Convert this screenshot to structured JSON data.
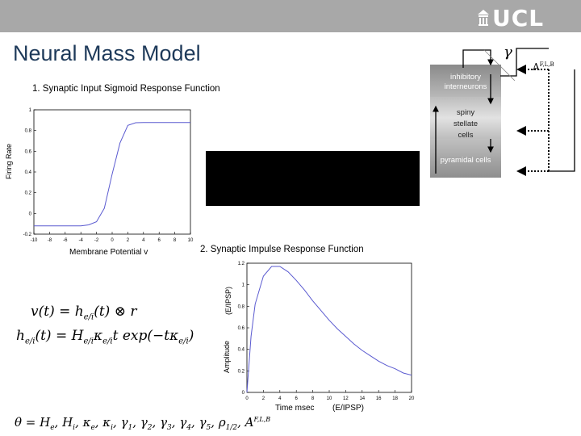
{
  "header": {
    "logo_text": "UCL",
    "title": "Neural Mass Model"
  },
  "section1": {
    "label": "1. Synaptic Input Sigmoid Response Function",
    "ylabel": "Firing Rate",
    "xlabel": "Membrane Potential v"
  },
  "section2": {
    "label": "2. Synaptic Impulse Response Function",
    "ylabel_a": "(E/IPSP)",
    "ylabel_b": "Amplitude",
    "xlabel_a": "Time msec",
    "xlabel_b": "(E/IPSP)"
  },
  "diagram": {
    "inhibitory": [
      "inhibitory",
      "interneurons"
    ],
    "spiny": [
      "spiny",
      "stellate",
      "cells"
    ],
    "pyramidal": "pyramidal cells",
    "ext_input": "A",
    "ext_input_sup": "F,L,B",
    "gamma": "γ"
  },
  "equations": {
    "eq1": "v(t) = h",
    "eq2": "h",
    "eq3": "θ = H"
  },
  "chart_data": [
    {
      "type": "line",
      "title": "",
      "xlabel": "Membrane Potential v",
      "ylabel": "Firing Rate",
      "xlim": [
        -10,
        10
      ],
      "ylim": [
        -0.2,
        1.0
      ],
      "xticks": [
        -10,
        -8,
        -6,
        -4,
        -2,
        0,
        2,
        4,
        6,
        8,
        10
      ],
      "yticks": [
        -0.2,
        0,
        0.2,
        0.4,
        0.6,
        0.8,
        1
      ],
      "series": [
        {
          "x": [
            -10,
            -6,
            -4,
            -3,
            -2,
            -1,
            0,
            1,
            2,
            3,
            4,
            6,
            10
          ],
          "y": [
            -0.12,
            -0.12,
            -0.12,
            -0.11,
            -0.08,
            0.05,
            0.38,
            0.68,
            0.85,
            0.875,
            0.877,
            0.877,
            0.877
          ]
        }
      ]
    },
    {
      "type": "line",
      "title": "",
      "xlabel": "Time msec",
      "ylabel": "Amplitude (E/IPSP)",
      "xlim": [
        0,
        20
      ],
      "ylim": [
        0,
        1.2
      ],
      "xticks": [
        0,
        2,
        4,
        6,
        8,
        10,
        12,
        14,
        16,
        18,
        20
      ],
      "yticks": [
        0,
        0.2,
        0.4,
        0.6,
        0.8,
        1,
        1.2
      ],
      "series": [
        {
          "x": [
            0,
            0.5,
            1,
            2,
            3,
            4,
            5,
            6,
            7,
            8,
            9,
            10,
            11,
            12,
            13,
            14,
            15,
            16,
            17,
            18,
            19,
            20
          ],
          "y": [
            0,
            0.52,
            0.82,
            1.08,
            1.17,
            1.17,
            1.12,
            1.04,
            0.95,
            0.85,
            0.76,
            0.67,
            0.59,
            0.52,
            0.45,
            0.39,
            0.34,
            0.29,
            0.25,
            0.22,
            0.18,
            0.16
          ]
        }
      ]
    }
  ]
}
